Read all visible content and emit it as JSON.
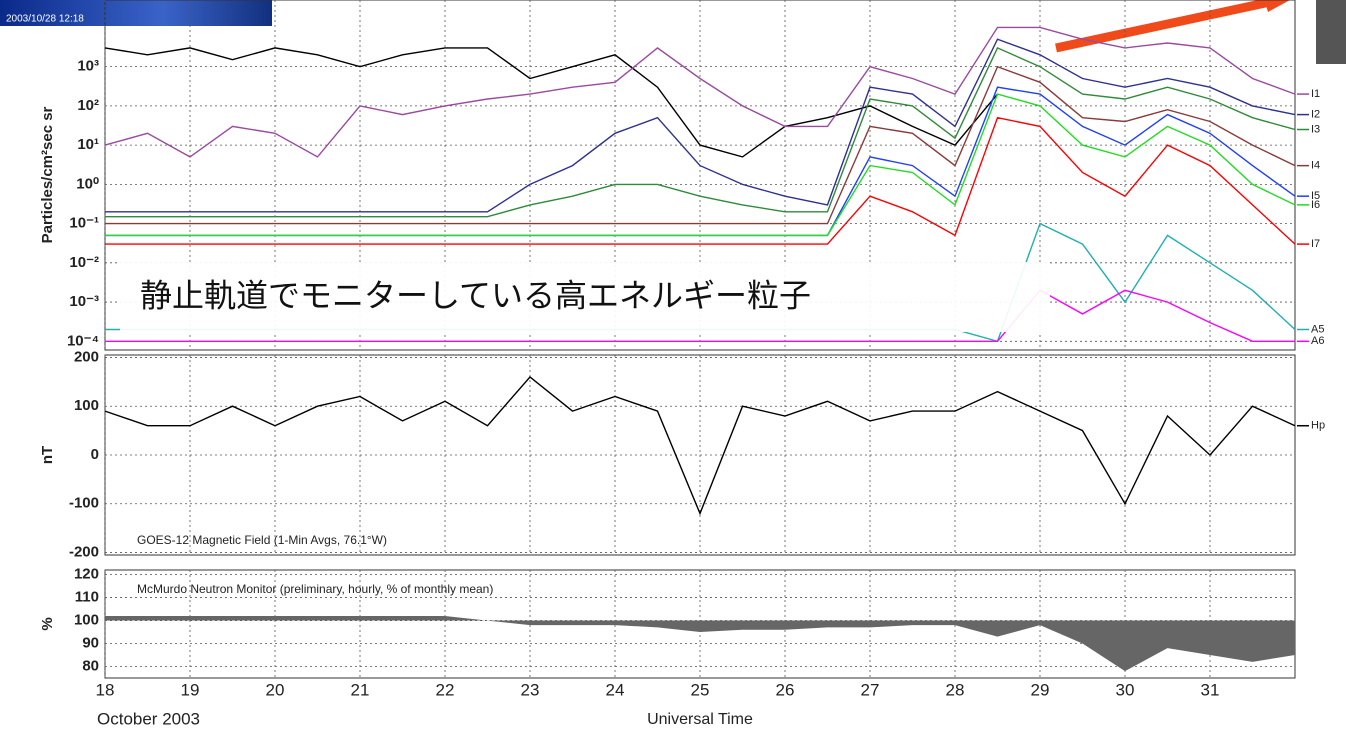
{
  "overlay_text": "静止軌道でモニターしている高エネルギー粒子",
  "image_caption": "2003/10/28 12:18",
  "chart_data": [
    {
      "type": "line",
      "ylabel": "Particles/cm²sec sr",
      "log_scale": true,
      "grid": true,
      "xlim": [
        18,
        32
      ],
      "xticks": [
        18,
        19,
        20,
        21,
        22,
        23,
        24,
        25,
        26,
        27,
        28,
        29,
        30,
        31
      ],
      "ylim": [
        6e-05,
        50000
      ],
      "yticks": [
        {
          "value": 0.0001,
          "label": "10⁻⁴"
        },
        {
          "value": 0.001,
          "label": "10⁻³"
        },
        {
          "value": 0.01,
          "label": "10⁻²"
        },
        {
          "value": 0.1,
          "label": "10⁻¹"
        },
        {
          "value": 1,
          "label": "10⁰"
        },
        {
          "value": 10,
          "label": "10¹"
        },
        {
          "value": 100,
          "label": "10²"
        },
        {
          "value": 1000,
          "label": "10³"
        }
      ],
      "x": [
        18,
        18.5,
        19,
        19.5,
        20,
        20.5,
        21,
        21.5,
        22,
        22.5,
        23,
        23.5,
        24,
        24.5,
        25,
        25.5,
        26,
        26.5,
        27,
        27.5,
        28,
        28.5,
        29,
        29.5,
        30,
        30.5,
        31,
        31.5,
        32
      ],
      "series": [
        {
          "color": "#000000",
          "values": [
            3000,
            2000,
            3000,
            1500,
            3000,
            2000,
            1000,
            2000,
            3000,
            3000,
            500,
            1000,
            2000,
            300,
            10,
            5,
            30,
            50,
            100,
            30,
            10,
            200,
            null,
            null,
            null,
            null,
            null,
            null,
            null
          ]
        },
        {
          "name": "I1",
          "color": "#9b4aa0",
          "values": [
            10,
            20,
            5,
            30,
            20,
            5,
            100,
            60,
            100,
            150,
            200,
            300,
            400,
            3000,
            500,
            100,
            30,
            30,
            1000,
            500,
            200,
            10000,
            10000,
            5000,
            3000,
            4000,
            3000,
            500,
            200
          ]
        },
        {
          "name": "I2",
          "color": "#2e3192",
          "values": [
            0.2,
            0.2,
            0.2,
            0.2,
            0.2,
            0.2,
            0.2,
            0.2,
            0.2,
            0.2,
            1,
            3,
            20,
            50,
            3,
            1,
            0.5,
            0.3,
            300,
            200,
            30,
            5000,
            2000,
            500,
            300,
            500,
            300,
            100,
            60
          ]
        },
        {
          "name": "I3",
          "color": "#2e8b3a",
          "values": [
            0.15,
            0.15,
            0.15,
            0.15,
            0.15,
            0.15,
            0.15,
            0.15,
            0.15,
            0.15,
            0.3,
            0.5,
            1,
            1,
            0.5,
            0.3,
            0.2,
            0.2,
            150,
            100,
            15,
            3000,
            1000,
            200,
            150,
            300,
            150,
            50,
            25
          ]
        },
        {
          "name": "I4",
          "color": "#8b3a3a",
          "values": [
            0.1,
            0.1,
            0.1,
            0.1,
            0.1,
            0.1,
            0.1,
            0.1,
            0.1,
            0.1,
            0.1,
            0.1,
            0.1,
            0.1,
            0.1,
            0.1,
            0.1,
            0.1,
            30,
            20,
            3,
            1000,
            400,
            50,
            40,
            80,
            40,
            10,
            3
          ]
        },
        {
          "name": "I5",
          "color": "#1f3fff",
          "values": [
            0.05,
            0.05,
            0.05,
            0.05,
            0.05,
            0.05,
            0.05,
            0.05,
            0.05,
            0.05,
            0.05,
            0.05,
            0.05,
            0.05,
            0.05,
            0.05,
            0.05,
            0.05,
            5,
            3,
            0.5,
            300,
            200,
            30,
            10,
            60,
            20,
            3,
            0.5
          ]
        },
        {
          "name": "I6",
          "color": "#22dd22",
          "values": [
            0.05,
            0.05,
            0.05,
            0.05,
            0.05,
            0.05,
            0.05,
            0.05,
            0.05,
            0.05,
            0.05,
            0.05,
            0.05,
            0.05,
            0.05,
            0.05,
            0.05,
            0.05,
            3,
            2,
            0.3,
            200,
            100,
            10,
            5,
            30,
            10,
            1,
            0.3
          ]
        },
        {
          "name": "I7",
          "color": "#ff0000",
          "values": [
            0.03,
            0.03,
            0.03,
            0.03,
            0.03,
            0.03,
            0.03,
            0.03,
            0.03,
            0.03,
            0.03,
            0.03,
            0.03,
            0.03,
            0.03,
            0.03,
            0.03,
            0.03,
            0.5,
            0.2,
            0.05,
            50,
            30,
            2,
            0.5,
            10,
            3,
            0.3,
            0.03
          ]
        },
        {
          "name": "A5",
          "color": "#20b0b0",
          "values": [
            0.0002,
            0.0002,
            0.0002,
            0.0002,
            0.0002,
            0.0002,
            0.0002,
            0.0002,
            0.0002,
            0.0002,
            0.0002,
            0.0002,
            0.0002,
            0.0002,
            0.0002,
            0.0002,
            0.0002,
            0.0002,
            0.0002,
            0.0002,
            0.0002,
            0.0001,
            0.1,
            0.03,
            0.001,
            0.05,
            0.01,
            0.002,
            0.0002
          ]
        },
        {
          "name": "A6",
          "color": "#ff00ff",
          "values": [
            0.0001,
            0.0001,
            0.0001,
            0.0001,
            0.0001,
            0.0001,
            0.0001,
            0.0001,
            0.0001,
            0.0001,
            0.0001,
            0.0001,
            0.0001,
            0.0001,
            0.0001,
            0.0001,
            0.0001,
            0.0001,
            0.0001,
            0.0001,
            0.0001,
            0.0001,
            0.002,
            0.0005,
            0.002,
            0.001,
            0.0003,
            0.0001,
            0.0001
          ]
        }
      ]
    },
    {
      "type": "line",
      "ylabel": "nT",
      "annotation": "GOES-12 Magnetic Field (1-Min Avgs, 76.1°W)",
      "grid": true,
      "xlim": [
        18,
        32
      ],
      "xticks": [
        18,
        19,
        20,
        21,
        22,
        23,
        24,
        25,
        26,
        27,
        28,
        29,
        30,
        31
      ],
      "ylim": [
        -205,
        205
      ],
      "yticks": [
        -200,
        -100,
        0,
        100,
        200
      ],
      "x": [
        18,
        18.5,
        19,
        19.5,
        20,
        20.5,
        21,
        21.5,
        22,
        22.5,
        23,
        23.5,
        24,
        24.5,
        25,
        25.5,
        26,
        26.5,
        27,
        27.5,
        28,
        28.5,
        29,
        29.5,
        30,
        30.5,
        31,
        31.5,
        32
      ],
      "series": [
        {
          "name": "Hp",
          "color": "#000000",
          "values": [
            90,
            60,
            60,
            100,
            60,
            100,
            120,
            70,
            110,
            60,
            160,
            90,
            120,
            90,
            -120,
            100,
            80,
            110,
            70,
            90,
            90,
            130,
            90,
            50,
            -100,
            80,
            0,
            100,
            60
          ]
        }
      ]
    },
    {
      "type": "area",
      "ylabel": "%",
      "annotation": "McMurdo Neutron Monitor (preliminary, hourly, % of monthly mean)",
      "grid": true,
      "xlabel": "Universal Time",
      "date_label": "October 2003",
      "xlim": [
        18,
        32
      ],
      "xticks": [
        18,
        19,
        20,
        21,
        22,
        23,
        24,
        25,
        26,
        27,
        28,
        29,
        30,
        31
      ],
      "ylim": [
        75,
        122
      ],
      "yticks": [
        80,
        90,
        100,
        110,
        120
      ],
      "baseline": 100,
      "color": "#666666",
      "x": [
        18,
        18.5,
        19,
        19.5,
        20,
        20.5,
        21,
        21.5,
        22,
        22.5,
        23,
        23.5,
        24,
        24.5,
        25,
        25.5,
        26,
        26.5,
        27,
        27.5,
        28,
        28.5,
        29,
        29.5,
        30,
        30.5,
        31,
        31.5,
        32
      ],
      "values": [
        102,
        102,
        102,
        102,
        102,
        102,
        102,
        102,
        102,
        100,
        98,
        98,
        98,
        97,
        95,
        96,
        96,
        97,
        97,
        98,
        98,
        93,
        98,
        90,
        78,
        88,
        85,
        82,
        85
      ]
    }
  ]
}
